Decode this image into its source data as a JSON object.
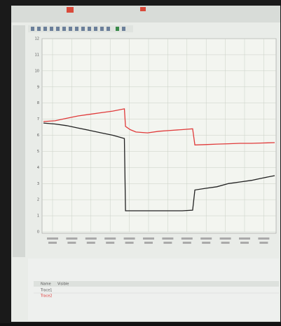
{
  "chart_data": {
    "type": "line",
    "x": [
      0,
      2,
      4,
      6,
      8,
      10,
      12,
      14,
      14.2,
      15,
      16,
      18,
      20,
      22,
      24,
      25.8,
      26.2,
      28,
      30,
      32,
      34,
      36,
      38,
      40
    ],
    "xlim": [
      0,
      40
    ],
    "series": [
      {
        "color": "#e03a3a",
        "values": [
          6.85,
          6.9,
          7.05,
          7.2,
          7.3,
          7.4,
          7.5,
          7.64,
          6.55,
          6.35,
          6.2,
          6.15,
          6.25,
          6.3,
          6.35,
          6.4,
          5.4,
          5.42,
          5.45,
          5.47,
          5.5,
          5.5,
          5.52,
          5.54
        ]
      },
      {
        "color": "#222222",
        "values": [
          6.76,
          6.7,
          6.6,
          6.45,
          6.3,
          6.15,
          6.0,
          5.8,
          1.31,
          1.31,
          1.31,
          1.31,
          1.31,
          1.31,
          1.31,
          1.35,
          2.6,
          2.7,
          2.8,
          3.0,
          3.1,
          3.2,
          3.35,
          3.49
        ]
      }
    ],
    "ylim": [
      0,
      12
    ],
    "yticks": [
      0,
      1,
      2,
      3,
      4,
      5,
      6,
      7,
      8,
      9,
      10,
      11,
      12
    ],
    "grid": true
  },
  "table": {
    "header": [
      "Name",
      "Visible"
    ],
    "rows": [
      [
        "Trace1"
      ],
      [
        "Trace2"
      ]
    ]
  }
}
